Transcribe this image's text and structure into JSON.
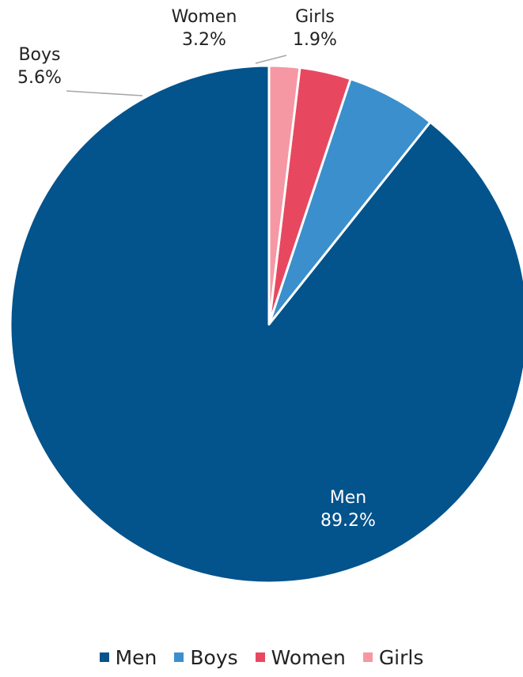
{
  "chart_data": {
    "type": "pie",
    "start_angle_deg": 0,
    "direction": "counterclockwise",
    "slices": [
      {
        "label": "Men",
        "value": 89.2,
        "value_label": "89.2%",
        "color": "#03538c"
      },
      {
        "label": "Boys",
        "value": 5.6,
        "value_label": "5.6%",
        "color": "#3b8fcc"
      },
      {
        "label": "Women",
        "value": 3.2,
        "value_label": "3.2%",
        "color": "#e8485f"
      },
      {
        "label": "Girls",
        "value": 1.9,
        "value_label": "1.9%",
        "color": "#f598a3"
      }
    ],
    "legend": {
      "position": "bottom",
      "items": [
        "Men",
        "Boys",
        "Women",
        "Girls"
      ]
    },
    "label_line_color": "#a6a6a6"
  }
}
